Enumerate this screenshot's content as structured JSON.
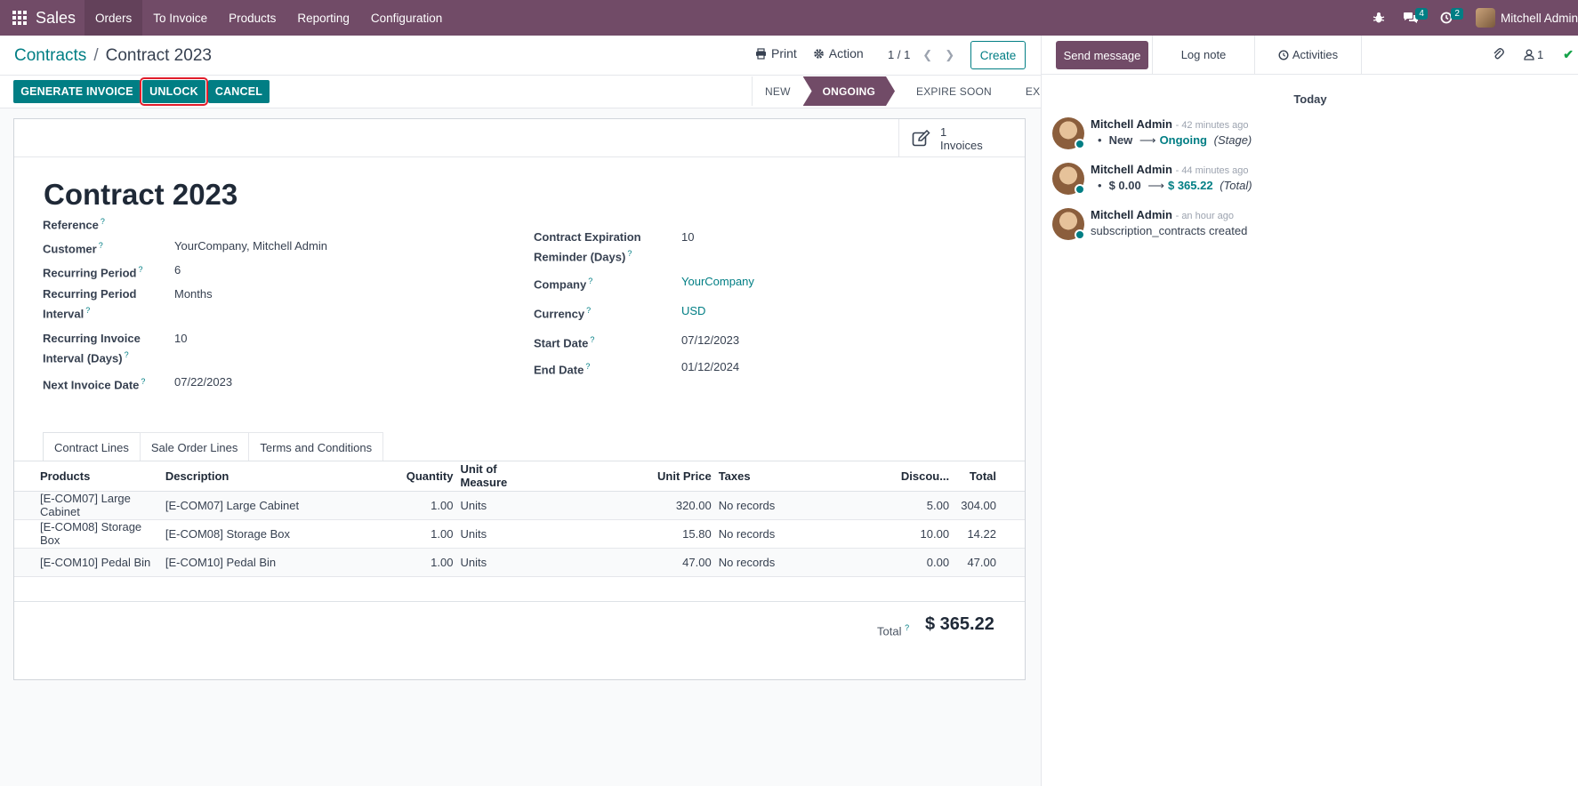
{
  "navbar": {
    "app_name": "Sales",
    "menu": [
      "Orders",
      "To Invoice",
      "Products",
      "Reporting",
      "Configuration"
    ],
    "active_menu": "Orders",
    "messages_badge": "4",
    "activities_badge": "2",
    "user_name": "Mitchell Admin"
  },
  "breadcrumb": {
    "parent": "Contracts",
    "sep": "/",
    "current": "Contract 2023"
  },
  "control_panel": {
    "print_label": "Print",
    "action_label": "Action",
    "pager": "1 / 1",
    "create_label": "Create"
  },
  "status_buttons": {
    "generate_invoice": "GENERATE INVOICE",
    "unlock": "UNLOCK",
    "cancel": "CANCEL"
  },
  "stages": [
    "NEW",
    "ONGOING",
    "EXPIRE SOON",
    "EXPIRED"
  ],
  "active_stage": "ONGOING",
  "smart_button": {
    "count": "1",
    "label": "Invoices"
  },
  "form": {
    "title": "Contract 2023",
    "left_fields": [
      {
        "label": "Reference",
        "value": ""
      },
      {
        "label": "Customer",
        "value": "YourCompany, Mitchell Admin"
      },
      {
        "label": "Recurring Period",
        "value": "6"
      },
      {
        "label": "Recurring Period Interval",
        "value": "Months"
      },
      {
        "label": "Recurring Invoice Interval (Days)",
        "value": "10"
      },
      {
        "label": "Next Invoice Date",
        "value": "07/22/2023"
      }
    ],
    "right_fields": [
      {
        "label": "Contract Expiration Reminder (Days)",
        "value": "10"
      },
      {
        "label": "Company",
        "value": "YourCompany"
      },
      {
        "label": "Currency",
        "value": "USD"
      },
      {
        "label": "Start Date",
        "value": "07/12/2023"
      },
      {
        "label": "End Date",
        "value": "01/12/2024"
      }
    ]
  },
  "tabs": [
    "Contract Lines",
    "Sale Order Lines",
    "Terms and Conditions"
  ],
  "active_tab": "Contract Lines",
  "lines": {
    "headers": [
      "Products",
      "Description",
      "Quantity",
      "Unit of Measure",
      "Unit Price",
      "Taxes",
      "Discou...",
      "Total"
    ],
    "rows": [
      [
        "[E-COM07] Large Cabinet",
        "[E-COM07] Large Cabinet",
        "1.00",
        "Units",
        "320.00",
        "No records",
        "5.00",
        "304.00"
      ],
      [
        "[E-COM08] Storage Box",
        "[E-COM08] Storage Box",
        "1.00",
        "Units",
        "15.80",
        "No records",
        "10.00",
        "14.22"
      ],
      [
        "[E-COM10] Pedal Bin",
        "[E-COM10] Pedal Bin",
        "1.00",
        "Units",
        "47.00",
        "No records",
        "0.00",
        "47.00"
      ]
    ]
  },
  "total": {
    "label": "Total",
    "value": "$ 365.22"
  },
  "chatter": {
    "send_message": "Send message",
    "log_note": "Log note",
    "activities": "Activities",
    "followers_count": "1",
    "day": "Today",
    "messages": [
      {
        "author": "Mitchell Admin",
        "time": "- 42 minutes ago",
        "old": "New",
        "new": "Ongoing",
        "field": "(Stage)"
      },
      {
        "author": "Mitchell Admin",
        "time": "- 44 minutes ago",
        "old": "$ 0.00",
        "new": "$ 365.22",
        "field": "(Total)"
      },
      {
        "author": "Mitchell Admin",
        "time": "- an hour ago",
        "text": "subscription_contracts created"
      }
    ]
  },
  "colors": {
    "brand": "#714b67",
    "accent": "#017e84",
    "highlight": "#e11d2b"
  }
}
